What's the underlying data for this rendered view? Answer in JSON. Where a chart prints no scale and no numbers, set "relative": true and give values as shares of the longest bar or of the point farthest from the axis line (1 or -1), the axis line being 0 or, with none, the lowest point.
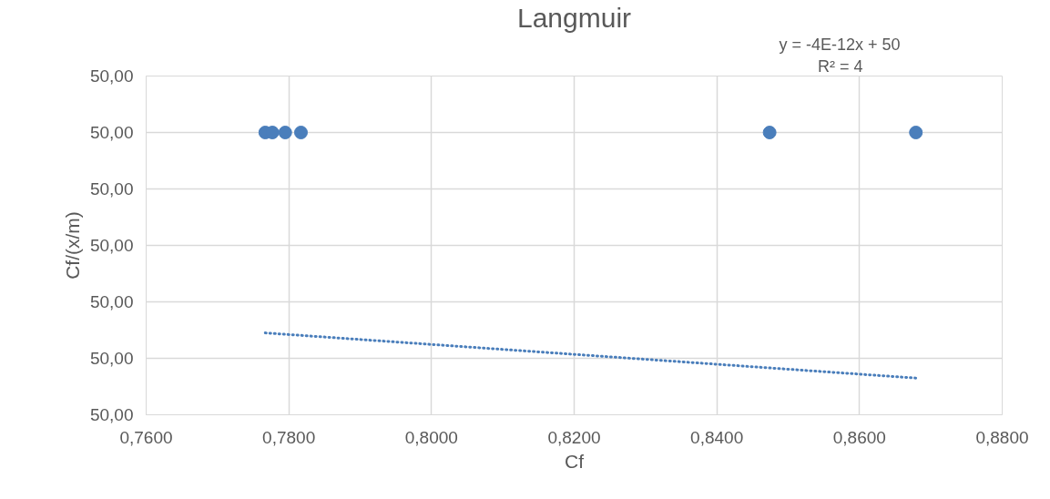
{
  "chart_data": {
    "type": "scatter",
    "title": "Langmuir",
    "xlabel": "Cf",
    "ylabel": "Cf/(x/m)",
    "xlim": [
      0.76,
      0.88
    ],
    "xticks": [
      {
        "value": 0.76,
        "label": "0,7600"
      },
      {
        "value": 0.78,
        "label": "0,7800"
      },
      {
        "value": 0.8,
        "label": "0,8000"
      },
      {
        "value": 0.82,
        "label": "0,8200"
      },
      {
        "value": 0.84,
        "label": "0,8400"
      },
      {
        "value": 0.86,
        "label": "0,8600"
      },
      {
        "value": 0.88,
        "label": "0,8800"
      }
    ],
    "relative": true,
    "grid": true,
    "marker": "circle",
    "series": [
      {
        "color": "#4a7ebb",
        "x": [
          0.7767,
          0.7777,
          0.7795,
          0.7817,
          0.8474,
          0.8679
        ],
        "values": [
          1,
          1,
          1,
          1,
          1,
          1
        ]
      },
      {
        "type": "line",
        "color": "#4a7ebb",
        "line_style": "dotted",
        "marker": "none",
        "x": [
          0.7767,
          0.8679
        ],
        "values": [
          0.29,
          0.13
        ]
      }
    ],
    "annotations": [
      "y = -4E-12x + 50",
      "R² = 4",
      "50,00",
      "50,00",
      "50,00",
      "50,00",
      "50,00",
      "50,00",
      "50,00"
    ]
  }
}
